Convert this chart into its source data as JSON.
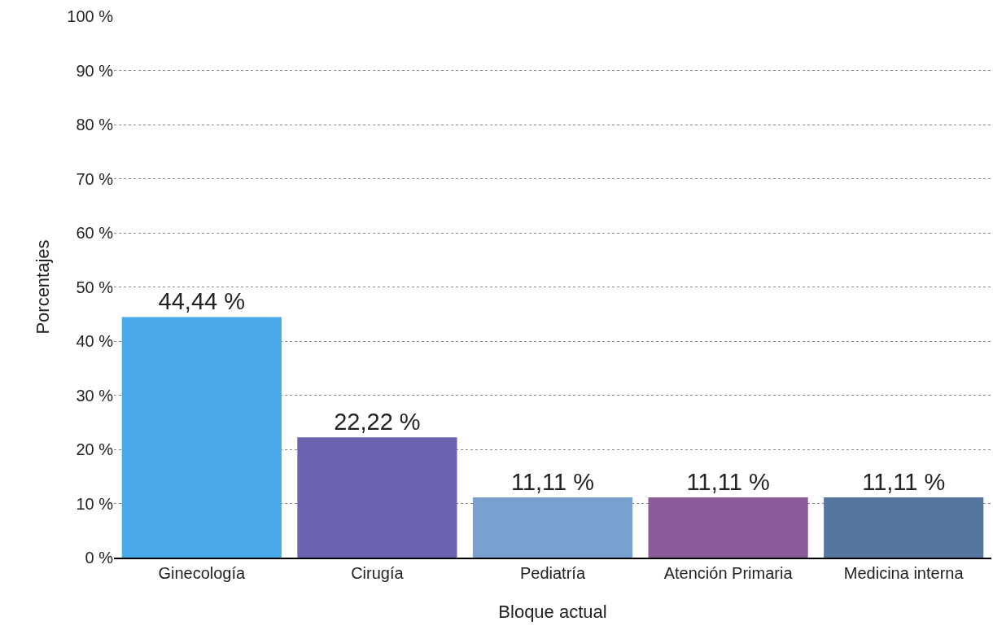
{
  "chart_data": {
    "type": "bar",
    "xlabel": "Bloque actual",
    "ylabel": "Porcentajes",
    "categories": [
      "Ginecología",
      "Cirugía",
      "Pediatría",
      "Atención Primaria",
      "Medicina interna"
    ],
    "values": [
      44.44,
      22.22,
      11.11,
      11.11,
      11.11
    ],
    "value_labels": [
      "44,44 %",
      "22,22 %",
      "11,11 %",
      "11,11 %",
      "11,11 %"
    ],
    "colors": [
      "#4aa9e8",
      "#6b63b0",
      "#78a0d0",
      "#8a5b9a",
      "#55779d"
    ],
    "ylim": [
      0,
      100
    ],
    "yticks": [
      {
        "value": 0,
        "label": "0 %"
      },
      {
        "value": 10,
        "label": "10 %"
      },
      {
        "value": 20,
        "label": "20 %"
      },
      {
        "value": 30,
        "label": "30 %"
      },
      {
        "value": 40,
        "label": "40 %"
      },
      {
        "value": 50,
        "label": "50 %"
      },
      {
        "value": 60,
        "label": "60 %"
      },
      {
        "value": 70,
        "label": "70 %"
      },
      {
        "value": 80,
        "label": "80 %"
      },
      {
        "value": 90,
        "label": "90 %"
      },
      {
        "value": 100,
        "label": "100 %"
      }
    ],
    "grid": "y"
  }
}
